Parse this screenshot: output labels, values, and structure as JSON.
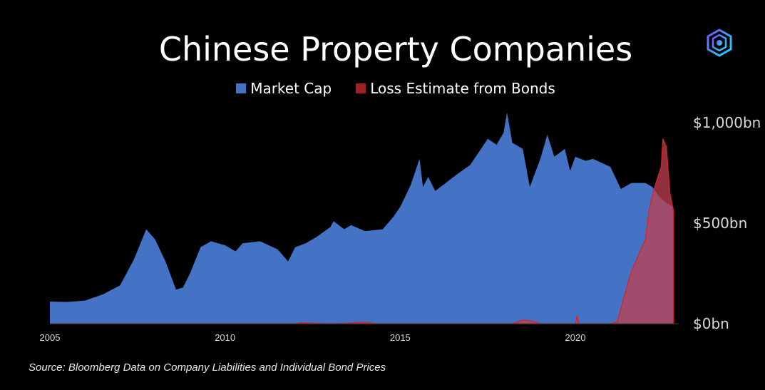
{
  "title": "Chinese Property Companies",
  "logo_icon": "hexagon-logo-icon",
  "legend": [
    {
      "label": "Market Cap",
      "color": "#4472c4"
    },
    {
      "label": "Loss Estimate from Bonds",
      "color": "#a02020"
    }
  ],
  "source": "Source: Bloomberg Data on Company Liabilities and Individual Bond Prices",
  "colors": {
    "background": "#000000",
    "market_cap": "#4472c4",
    "loss_fill": "#c04050",
    "loss_line": "#e02020",
    "axis_text": "#d9d9d9"
  },
  "chart_data": {
    "type": "area",
    "title": "Chinese Property Companies",
    "xlabel": "",
    "ylabel": "",
    "xlim": [
      2005.0,
      2022.8
    ],
    "ylim": [
      0,
      1050
    ],
    "y_ticks": [
      0,
      500,
      1000
    ],
    "y_tick_labels": [
      "$0bn",
      "$500bn",
      "$1,000bn"
    ],
    "x_ticks": [
      2005,
      2010,
      2015,
      2020
    ],
    "x_tick_labels": [
      "2005",
      "2010",
      "2015",
      "2020"
    ],
    "grid": false,
    "legend_position": "top-center",
    "series": [
      {
        "name": "Market Cap",
        "color": "#4472c4",
        "x": [
          2005.0,
          2005.5,
          2006.0,
          2006.5,
          2007.0,
          2007.4,
          2007.75,
          2008.0,
          2008.3,
          2008.6,
          2008.8,
          2009.0,
          2009.3,
          2009.6,
          2010.0,
          2010.3,
          2010.5,
          2011.0,
          2011.5,
          2011.8,
          2012.0,
          2012.3,
          2012.6,
          2013.0,
          2013.1,
          2013.4,
          2013.6,
          2014.0,
          2014.5,
          2014.8,
          2015.0,
          2015.3,
          2015.55,
          2015.65,
          2015.8,
          2016.0,
          2016.3,
          2016.6,
          2017.0,
          2017.5,
          2017.75,
          2017.95,
          2018.05,
          2018.2,
          2018.5,
          2018.7,
          2019.0,
          2019.2,
          2019.4,
          2019.7,
          2019.85,
          2020.0,
          2020.3,
          2020.5,
          2021.0,
          2021.3,
          2021.6,
          2022.0,
          2022.2,
          2022.4,
          2022.6,
          2022.8
        ],
        "values": [
          110,
          108,
          115,
          145,
          190,
          320,
          470,
          420,
          310,
          170,
          180,
          250,
          380,
          410,
          390,
          360,
          400,
          410,
          370,
          310,
          380,
          400,
          430,
          480,
          510,
          470,
          490,
          460,
          470,
          530,
          580,
          690,
          820,
          680,
          730,
          660,
          700,
          740,
          790,
          920,
          890,
          950,
          1050,
          900,
          870,
          680,
          820,
          940,
          830,
          870,
          760,
          830,
          810,
          820,
          780,
          670,
          700,
          700,
          680,
          630,
          600,
          580
        ]
      },
      {
        "name": "Loss Estimate from Bonds",
        "color": "#c04050",
        "x": [
          2005.0,
          2012.0,
          2012.2,
          2013.0,
          2013.5,
          2014.0,
          2014.3,
          2017.0,
          2018.2,
          2018.5,
          2018.8,
          2019.0,
          2020.0,
          2020.05,
          2020.1,
          2021.0,
          2021.2,
          2021.4,
          2021.6,
          2021.8,
          2022.0,
          2022.1,
          2022.2,
          2022.3,
          2022.45,
          2022.5,
          2022.6,
          2022.7,
          2022.8
        ],
        "values": [
          0,
          0,
          5,
          0,
          3,
          8,
          0,
          0,
          0,
          18,
          12,
          0,
          0,
          40,
          0,
          0,
          10,
          140,
          260,
          340,
          420,
          560,
          640,
          700,
          780,
          920,
          880,
          650,
          560
        ]
      }
    ]
  }
}
